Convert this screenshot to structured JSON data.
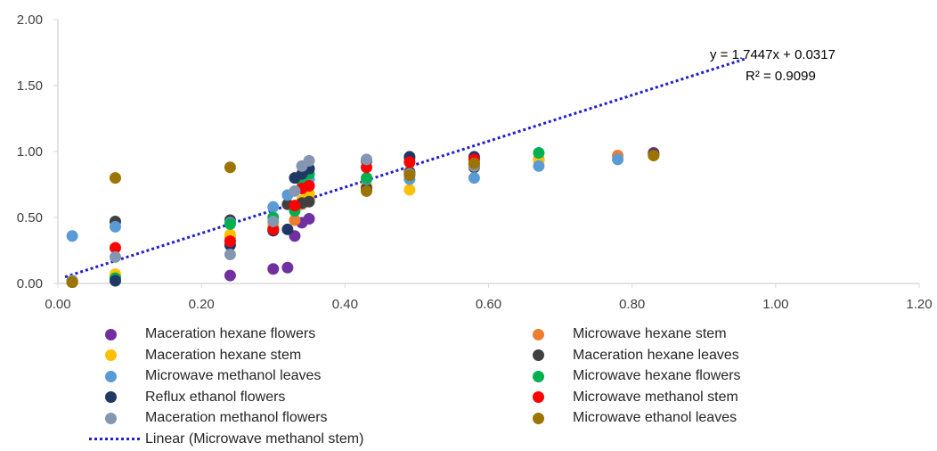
{
  "chart_data": {
    "type": "scatter",
    "title": "",
    "xlabel": "",
    "ylabel": "",
    "xlim": [
      0,
      1.2
    ],
    "ylim": [
      0,
      2.0
    ],
    "x_ticks": [
      "0.00",
      "0.20",
      "0.40",
      "0.60",
      "0.80",
      "1.00",
      "1.20"
    ],
    "y_ticks": [
      "0.00",
      "0.50",
      "1.00",
      "1.50",
      "2.00"
    ],
    "grid": false,
    "legend_position": "bottom",
    "series": [
      {
        "name": "Maceration hexane flowers",
        "color": "#7030a0",
        "points": [
          [
            0.24,
            0.06
          ],
          [
            0.3,
            0.11
          ],
          [
            0.32,
            0.12
          ],
          [
            0.33,
            0.36
          ],
          [
            0.34,
            0.46
          ],
          [
            0.35,
            0.49
          ],
          [
            0.43,
            0.71
          ],
          [
            0.49,
            0.83
          ],
          [
            0.58,
            0.91
          ],
          [
            0.83,
            0.99
          ]
        ]
      },
      {
        "name": "Microwave hexane stem",
        "color": "#ed7d31",
        "points": [
          [
            0.02,
            0.01
          ],
          [
            0.08,
            0.06
          ],
          [
            0.24,
            0.35
          ],
          [
            0.3,
            0.42
          ],
          [
            0.33,
            0.48
          ],
          [
            0.34,
            0.6
          ],
          [
            0.35,
            0.64
          ],
          [
            0.43,
            0.73
          ],
          [
            0.49,
            0.85
          ],
          [
            0.58,
            0.9
          ],
          [
            0.67,
            0.94
          ],
          [
            0.78,
            0.97
          ],
          [
            0.83,
            0.97
          ]
        ]
      },
      {
        "name": "Maceration hexane stem",
        "color": "#ffc000",
        "points": [
          [
            0.02,
            0.02
          ],
          [
            0.08,
            0.07
          ],
          [
            0.24,
            0.37
          ],
          [
            0.3,
            0.45
          ],
          [
            0.34,
            0.63
          ],
          [
            0.35,
            0.68
          ],
          [
            0.43,
            0.74
          ],
          [
            0.49,
            0.71
          ],
          [
            0.58,
            0.92
          ],
          [
            0.67,
            0.93
          ]
        ]
      },
      {
        "name": "Maceration hexane leaves",
        "color": "#404040",
        "points": [
          [
            0.02,
            0.01
          ],
          [
            0.08,
            0.47
          ],
          [
            0.24,
            0.48
          ],
          [
            0.3,
            0.4
          ],
          [
            0.32,
            0.6
          ],
          [
            0.34,
            0.61
          ],
          [
            0.35,
            0.62
          ],
          [
            0.43,
            0.72
          ],
          [
            0.49,
            0.84
          ],
          [
            0.58,
            0.88
          ],
          [
            0.83,
            0.98
          ]
        ]
      },
      {
        "name": "Microwave methanol leaves",
        "color": "#5b9bd5",
        "points": [
          [
            0.02,
            0.36
          ],
          [
            0.08,
            0.43
          ],
          [
            0.24,
            0.46
          ],
          [
            0.3,
            0.58
          ],
          [
            0.32,
            0.67
          ],
          [
            0.34,
            0.72
          ],
          [
            0.35,
            0.79
          ],
          [
            0.43,
            0.79
          ],
          [
            0.49,
            0.79
          ],
          [
            0.58,
            0.8
          ],
          [
            0.67,
            0.89
          ],
          [
            0.78,
            0.94
          ]
        ]
      },
      {
        "name": "Microwave hexane flowers",
        "color": "#00b050",
        "points": [
          [
            0.02,
            0.02
          ],
          [
            0.08,
            0.04
          ],
          [
            0.24,
            0.45
          ],
          [
            0.3,
            0.5
          ],
          [
            0.33,
            0.55
          ],
          [
            0.34,
            0.77
          ],
          [
            0.35,
            0.83
          ],
          [
            0.43,
            0.8
          ],
          [
            0.49,
            0.95
          ],
          [
            0.58,
            0.95
          ],
          [
            0.67,
            0.99
          ]
        ]
      },
      {
        "name": "Reflux ethanol flowers",
        "color": "#203864",
        "points": [
          [
            0.02,
            0.01
          ],
          [
            0.08,
            0.02
          ],
          [
            0.24,
            0.29
          ],
          [
            0.3,
            0.4
          ],
          [
            0.32,
            0.41
          ],
          [
            0.33,
            0.8
          ],
          [
            0.34,
            0.83
          ],
          [
            0.35,
            0.87
          ],
          [
            0.43,
            0.93
          ],
          [
            0.49,
            0.96
          ],
          [
            0.58,
            0.96
          ]
        ]
      },
      {
        "name": "Microwave methanol stem",
        "color": "#ff0000",
        "points": [
          [
            0.02,
            0.02
          ],
          [
            0.08,
            0.27
          ],
          [
            0.24,
            0.32
          ],
          [
            0.3,
            0.41
          ],
          [
            0.33,
            0.59
          ],
          [
            0.34,
            0.72
          ],
          [
            0.35,
            0.74
          ],
          [
            0.43,
            0.88
          ],
          [
            0.49,
            0.92
          ],
          [
            0.58,
            0.94
          ]
        ]
      },
      {
        "name": "Maceration methanol flowers",
        "color": "#8497b0",
        "points": [
          [
            0.02,
            0.02
          ],
          [
            0.08,
            0.2
          ],
          [
            0.24,
            0.22
          ],
          [
            0.3,
            0.47
          ],
          [
            0.33,
            0.7
          ],
          [
            0.34,
            0.89
          ],
          [
            0.35,
            0.93
          ],
          [
            0.43,
            0.94
          ],
          [
            0.49,
            0.83
          ],
          [
            0.58,
            0.89
          ]
        ]
      },
      {
        "name": "Microwave ethanol leaves",
        "color": "#9c7400",
        "points": [
          [
            0.02,
            0.01
          ],
          [
            0.08,
            0.8
          ],
          [
            0.24,
            0.88
          ],
          [
            0.43,
            0.7
          ],
          [
            0.49,
            0.82
          ],
          [
            0.58,
            0.91
          ],
          [
            0.83,
            0.97
          ]
        ]
      }
    ],
    "trendline": {
      "legend_label": "Linear (Microwave methanol stem)",
      "slope": 1.7447,
      "intercept": 0.0317,
      "x_range": [
        0.01,
        0.96
      ],
      "color": "#1f1fd0",
      "equation_text": "y = 1.7447x + 0.0317",
      "r2_text": "R² = 0.9099"
    },
    "legend_order": [
      "Maceration hexane flowers",
      "Microwave hexane stem",
      "Maceration hexane stem",
      "Maceration hexane leaves",
      "Microwave methanol leaves",
      "Microwave hexane flowers",
      "Reflux ethanol flowers",
      "Microwave methanol stem",
      "Maceration methanol flowers",
      "Microwave ethanol leaves"
    ]
  }
}
